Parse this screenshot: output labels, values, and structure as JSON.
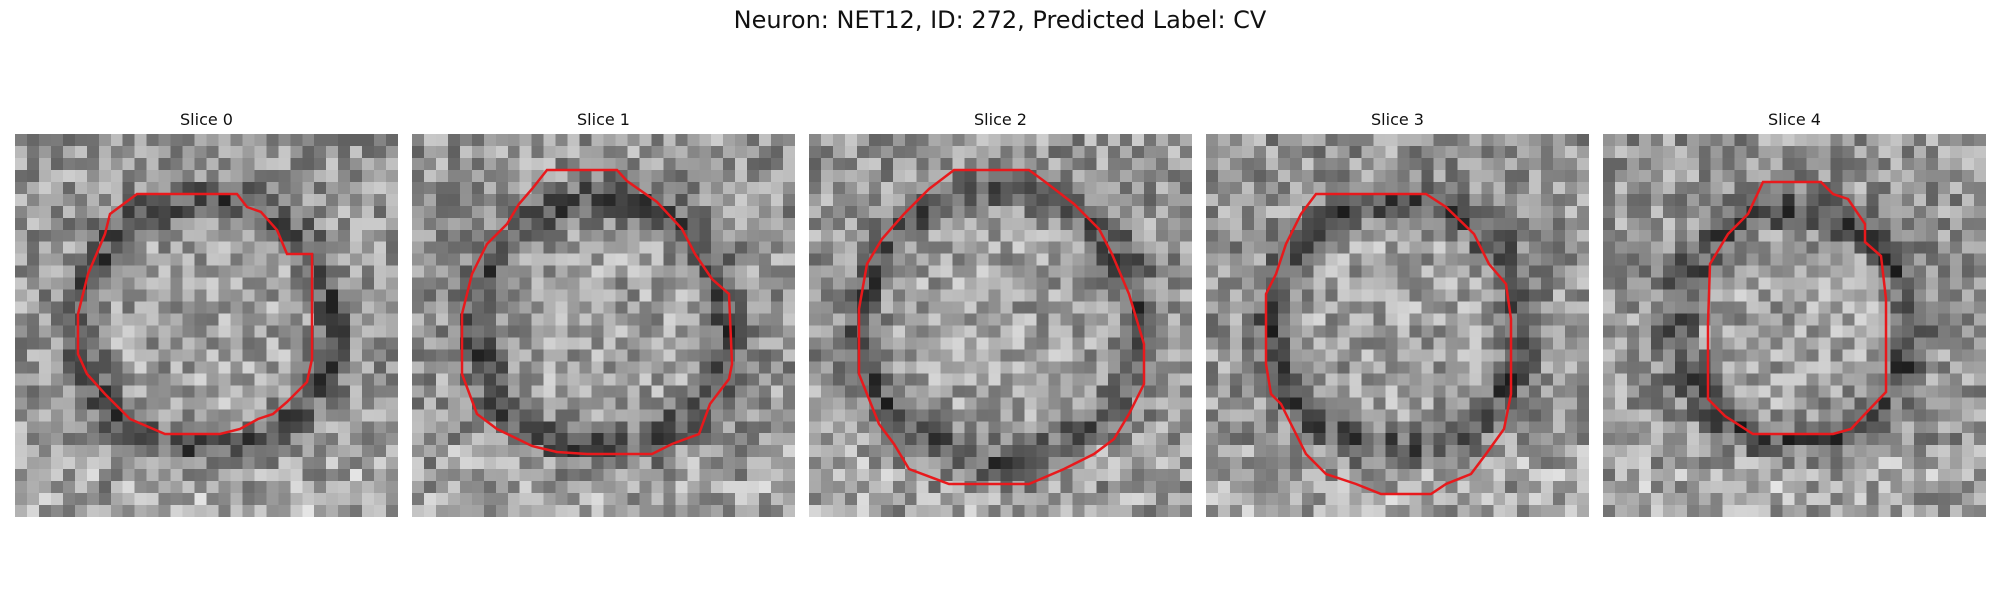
{
  "title": "Neuron: NET12, ID: 272, Predicted Label: CV",
  "slices": [
    {
      "label": "Slice 0",
      "contour_color": "#e8191c"
    },
    {
      "label": "Slice 1",
      "contour_color": "#e8191c"
    },
    {
      "label": "Slice 2",
      "contour_color": "#e8191c"
    },
    {
      "label": "Slice 3",
      "contour_color": "#e8191c"
    },
    {
      "label": "Slice 4",
      "contour_color": "#e8191c"
    }
  ]
}
